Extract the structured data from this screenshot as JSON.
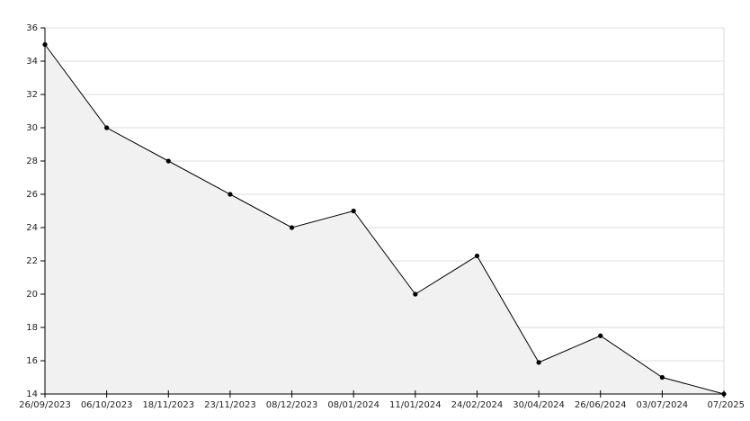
{
  "chart_data": {
    "type": "area",
    "categories": [
      "26/09/2023",
      "06/10/2023",
      "18/11/2023",
      "23/11/2023",
      "08/12/2023",
      "08/01/2024",
      "11/01/2024",
      "24/02/2024",
      "30/04/2024",
      "26/06/2024",
      "03/07/2024",
      "07/2025"
    ],
    "values": [
      35,
      30,
      28,
      26,
      24,
      25,
      20,
      22.3,
      15.9,
      17.5,
      15,
      14
    ],
    "color": "#000000",
    "fill": "#f1f1f1",
    "ylim": [
      14,
      36
    ],
    "yticks": [
      14,
      16,
      18,
      20,
      22,
      24,
      26,
      28,
      30,
      32,
      34,
      36
    ],
    "grid": true
  }
}
